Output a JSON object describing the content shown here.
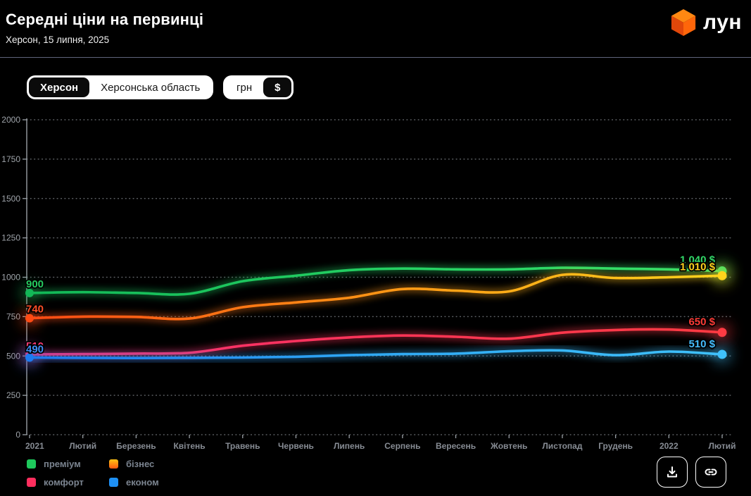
{
  "header": {
    "title": "Середні ціни на первинці",
    "subtitle": "Херсон, 15 липня, 2025",
    "logo_text": "лун"
  },
  "toggles": {
    "location": {
      "options": [
        {
          "label": "Херсон",
          "selected": true
        },
        {
          "label": "Херсонська область",
          "selected": false
        }
      ]
    },
    "currency": {
      "options": [
        {
          "label": "грн",
          "selected": false
        },
        {
          "label": "$",
          "selected": true
        }
      ]
    }
  },
  "chart_data": {
    "type": "line",
    "title": "Середні ціни на первинці",
    "xlabel": "",
    "ylabel": "",
    "unit": "$",
    "ylim": [
      0,
      2000
    ],
    "yticks": [
      0,
      250,
      500,
      750,
      1000,
      1250,
      1500,
      1750,
      2000
    ],
    "grid": "dotted-horizontal",
    "legend_position": "bottom-left",
    "categories": [
      "2021",
      "Лютий",
      "Березень",
      "Квітень",
      "Травень",
      "Червень",
      "Липень",
      "Серпень",
      "Вересень",
      "Жовтень",
      "Листопад",
      "Грудень",
      "2022",
      "Лютий"
    ],
    "series": [
      {
        "key": "premium",
        "name": "преміум",
        "values": [
          900,
          905,
          900,
          895,
          975,
          1010,
          1045,
          1055,
          1050,
          1050,
          1060,
          1055,
          1050,
          1040
        ],
        "start_label": "900",
        "end_label": "1 040 $",
        "gradient": [
          "#12b857",
          "#24cf62",
          "#35e36c"
        ],
        "start_label_color": "#25cc60",
        "end_label_color": "#32d968"
      },
      {
        "key": "business",
        "name": "бізнес",
        "values": [
          740,
          750,
          748,
          738,
          810,
          840,
          870,
          925,
          915,
          910,
          1015,
          995,
          1000,
          1010
        ],
        "start_label": "740",
        "end_label": "1 010 $",
        "gradient": [
          "#ff4a14",
          "#ff9415",
          "#ffd41c"
        ],
        "start_label_color": "#ff4f26",
        "end_label_color": "#ffd21e"
      },
      {
        "key": "comfort",
        "name": "комфорт",
        "values": [
          510,
          512,
          515,
          520,
          565,
          595,
          618,
          630,
          622,
          610,
          648,
          665,
          668,
          650
        ],
        "start_label": "510",
        "end_label": "650 $",
        "gradient": [
          "#ff2e78",
          "#fb3457",
          "#ff3a42"
        ],
        "start_label_color": "#ff3d78",
        "end_label_color": "#ff3b36"
      },
      {
        "key": "econom",
        "name": "економ",
        "values": [
          490,
          488,
          487,
          488,
          490,
          495,
          505,
          512,
          515,
          530,
          535,
          505,
          528,
          510
        ],
        "start_label": "490",
        "end_label": "510 $",
        "gradient": [
          "#1d7af0",
          "#2fa9f3",
          "#3fc1fb"
        ],
        "start_label_color": "#3f8ff7",
        "end_label_color": "#45bdfd"
      }
    ]
  },
  "legend": {
    "items": [
      {
        "label": "преміум",
        "colors": [
          "#1ec95c"
        ]
      },
      {
        "label": "бізнес",
        "colors": [
          "#ffc414",
          "#ff5a10"
        ]
      },
      {
        "label": "комфорт",
        "colors": [
          "#ff2e5e"
        ]
      },
      {
        "label": "економ",
        "colors": [
          "#1e90f5"
        ]
      }
    ]
  },
  "axis_style": {
    "axis_color": "#9aa0a6",
    "grid_color": "#5c5f63",
    "x_label_color": "#878c94",
    "y_label_color": "#9fa4aa"
  }
}
